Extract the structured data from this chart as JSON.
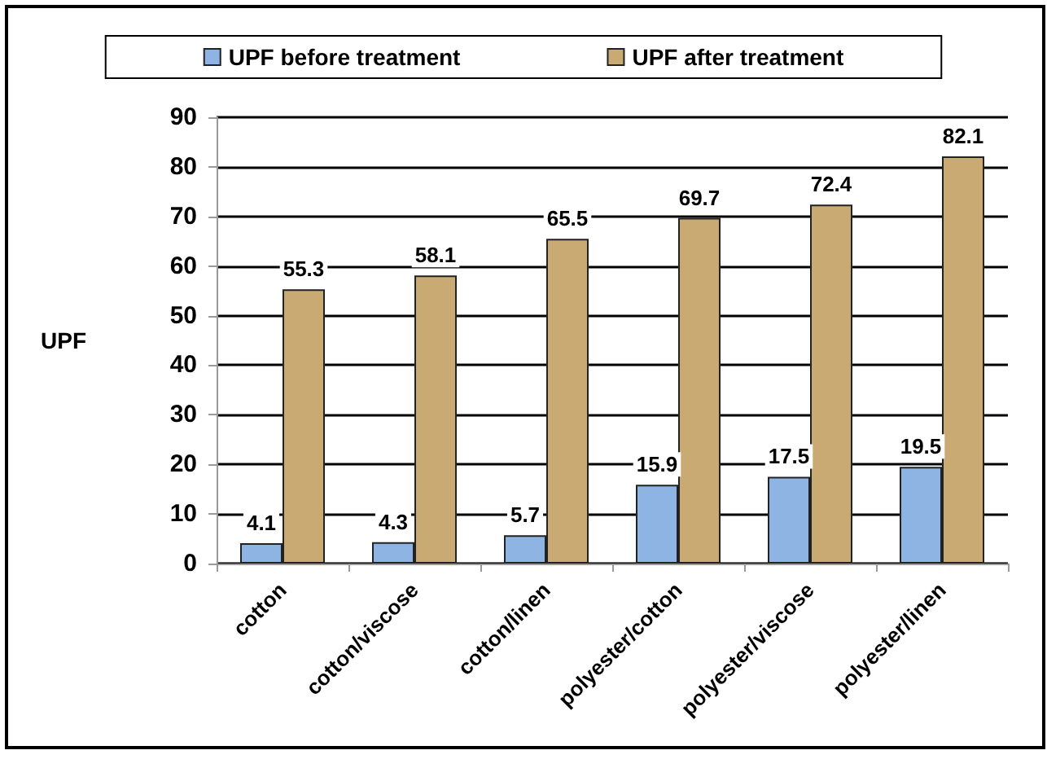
{
  "chart_data": {
    "type": "bar",
    "ylabel": "UPF",
    "categories": [
      "cotton",
      "cotton/viscose",
      "cotton/linen",
      "polyester/cotton",
      "polyester/viscose",
      "polyester/linen"
    ],
    "series": [
      {
        "name": "UPF before treatment",
        "color": "#8eb4e3",
        "values": [
          4.1,
          4.3,
          5.7,
          15.9,
          17.5,
          19.5
        ]
      },
      {
        "name": "UPF after treatment",
        "color": "#c8aa72",
        "values": [
          55.3,
          58.1,
          65.5,
          69.7,
          72.4,
          82.1
        ]
      }
    ],
    "ylim": [
      0,
      90
    ],
    "yticks": [
      0,
      10,
      20,
      30,
      40,
      50,
      60,
      70,
      80,
      90
    ],
    "grid": "y",
    "legend": "top",
    "data_labels": true
  }
}
